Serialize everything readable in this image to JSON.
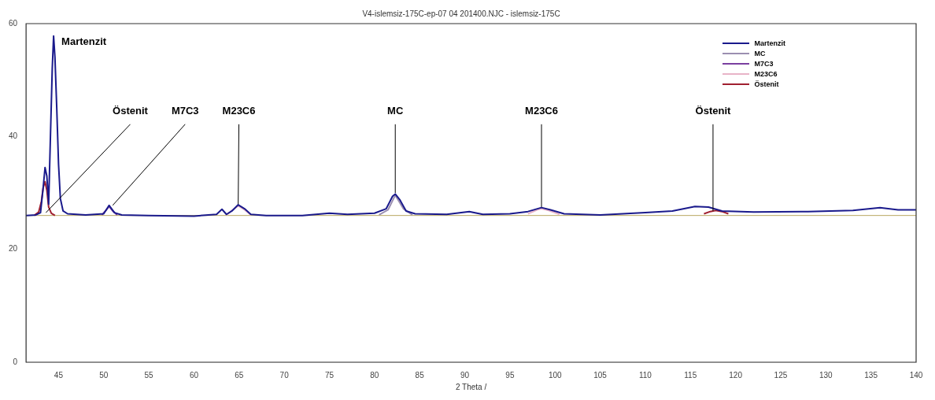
{
  "chart_data": {
    "type": "line",
    "title": "V4-islemsiz-175C-ep-07 04 201400.NJC - islemsiz-175C",
    "xlabel": "2 Theta /",
    "xlim": [
      41.4,
      140
    ],
    "xticks": [
      45,
      50,
      55,
      60,
      65,
      70,
      75,
      80,
      85,
      90,
      95,
      100,
      105,
      110,
      115,
      120,
      125,
      130,
      135,
      140
    ],
    "ylim": [
      0,
      60
    ],
    "yticks": [
      0,
      20,
      40,
      60
    ],
    "grid": false,
    "legend": "top right",
    "marker": "none",
    "line_style": "solid",
    "ref_lines": [
      {
        "axis": "y",
        "value": 26,
        "color": "#b8a860"
      }
    ],
    "series": [
      {
        "name": "Martenzit",
        "color": "#1a1a8c",
        "x": [
          41.4,
          42.5,
          43.0,
          43.3,
          43.5,
          43.7,
          43.9,
          44.1,
          44.3,
          44.45,
          44.6,
          44.8,
          45.0,
          45.2,
          45.5,
          46,
          48,
          50,
          50.6,
          51.2,
          52,
          55,
          60,
          62.5,
          63.1,
          63.6,
          64.2,
          64.9,
          65.6,
          66.3,
          68,
          72,
          75,
          77,
          80,
          81.3,
          82.0,
          82.3,
          82.8,
          83.5,
          84.5,
          88,
          90.5,
          92,
          95,
          97,
          98.5,
          99.5,
          101,
          105,
          110,
          113,
          115.5,
          117,
          118.5,
          122,
          128,
          133,
          136,
          138,
          140
        ],
        "values": [
          26,
          26.1,
          26.5,
          31,
          34.5,
          33,
          28,
          40,
          52,
          57.8,
          54,
          45,
          35,
          29,
          26.8,
          26.3,
          26.1,
          26.3,
          27.8,
          26.5,
          26.1,
          26,
          25.9,
          26.2,
          27.1,
          26.2,
          26.8,
          27.9,
          27.2,
          26.2,
          26,
          26,
          26.4,
          26.2,
          26.4,
          27.2,
          29.4,
          29.8,
          28.8,
          26.8,
          26.3,
          26.2,
          26.7,
          26.2,
          26.3,
          26.7,
          27.4,
          27.0,
          26.3,
          26.1,
          26.5,
          26.8,
          27.6,
          27.5,
          26.8,
          26.6,
          26.7,
          26.9,
          27.4,
          27.0,
          27.0
        ]
      },
      {
        "name": "MC",
        "color": "#9b8fb0",
        "x": [
          80.5,
          81.5,
          82.3,
          83.2,
          84.2
        ],
        "values": [
          26.1,
          27.0,
          29.6,
          27.2,
          26.1
        ]
      },
      {
        "name": "M7C3",
        "color": "#7a3fa0",
        "x": [
          49.8,
          50.3,
          50.6,
          51.0,
          51.5
        ],
        "values": [
          26.1,
          27.0,
          27.6,
          26.8,
          26.1
        ]
      },
      {
        "name": "M23C6",
        "color": "#e8b4c8",
        "x": [
          63.6,
          64.3,
          64.9,
          65.6,
          66.3,
          null,
          97,
          98,
          98.5,
          99.3,
          100.5
        ],
        "values": [
          26.1,
          27.0,
          27.7,
          27.0,
          26.1,
          null,
          26.3,
          27.0,
          27.2,
          26.9,
          26.2
        ]
      },
      {
        "name": "Östenit",
        "color": "#a02030",
        "x": [
          42.3,
          42.8,
          43.1,
          43.3,
          43.5,
          43.7,
          43.9,
          44.2,
          44.6,
          null,
          116.5,
          117.2,
          117.8,
          118.5,
          119.2
        ],
        "values": [
          26.0,
          26.6,
          28.5,
          31.0,
          32.0,
          30.5,
          27.5,
          26.4,
          26.0,
          null,
          26.3,
          26.7,
          26.9,
          26.7,
          26.3
        ]
      }
    ],
    "annotations": [
      {
        "text": "Martenzit",
        "x": 44.45,
        "y": 57.8
      },
      {
        "text": "Östenit",
        "x": 43.6,
        "y": 26.5
      },
      {
        "text": "M7C3",
        "x": 51,
        "y": 27.8
      },
      {
        "text": "M23C6",
        "x": 64.9,
        "y": 28
      },
      {
        "text": "MC",
        "x": 82.3,
        "y": 30
      },
      {
        "text": "M23C6",
        "x": 98.5,
        "y": 27.5
      },
      {
        "text": "Östenit",
        "x": 117.5,
        "y": 26.8
      }
    ]
  }
}
